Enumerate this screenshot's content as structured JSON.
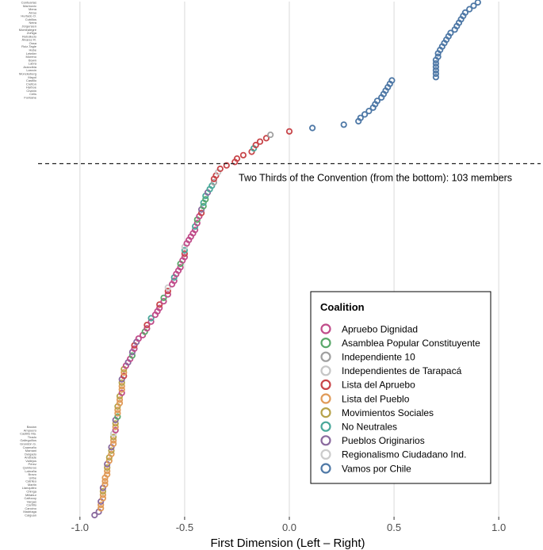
{
  "chart_data": {
    "type": "scatter",
    "xlabel": "First Dimension (Left – Right)",
    "ylabel": "",
    "xlim": [
      -1.2,
      1.2
    ],
    "x_ticks": [
      -1.0,
      -0.5,
      0.0,
      0.5,
      1.0
    ],
    "x_tick_labels": [
      "-1.0",
      "-0.5",
      "0.0",
      "0.5",
      "1.0"
    ],
    "grid": true,
    "legend": {
      "title": "Coalition",
      "position": "bottom-right"
    },
    "annotation": {
      "text": "Two Thirds of the Convention (from the bottom): 103 members",
      "rank_from_bottom": 103,
      "linestyle": "dashed"
    },
    "y_tick_labels_top": [
      "Cantuarias",
      "Marinovic",
      "Mena",
      "Arrau",
      "Hurtado O.",
      "Cubillos",
      "Neira",
      "Jürgensen",
      "Montealegre",
      "Zúñiga",
      "Rebolledo",
      "Álvarez R.",
      "Ossa",
      "Ruiz-Tagle",
      "Hube",
      "Letelier",
      "Moreno",
      "Bown",
      "Labra",
      "Arancibia",
      "Larraín",
      "Monckeberg",
      "Mayol",
      "Castillo",
      "Cretton",
      "Harboe",
      "Chahin",
      "Celis",
      "Fontaine"
    ],
    "y_tick_labels_bottom": [
      "Bacian",
      "Ampuero",
      "Castillo Ma.",
      "Tirado",
      "Galleguillos",
      "Grandón G.",
      "Caamaño",
      "Mamani",
      "Delgado",
      "Andrade",
      "Vallejos",
      "Pérez",
      "Quinteros",
      "Labraña",
      "Bravo",
      "Uribe",
      "Catrileo",
      "Martin",
      "Llanquileo",
      "Chinga",
      "Millabur",
      "Calfucoy",
      "Vargas",
      "Carrillo",
      "Cancino",
      "Madriaga",
      "Caiguan"
    ],
    "series": [
      {
        "name": "Apruebo Dignidad",
        "color": "#c04c8a",
        "values": [
          -0.83,
          -0.8,
          -0.78,
          -0.76,
          -0.74,
          -0.72,
          -0.7,
          -0.68,
          -0.66,
          -0.64,
          -0.63,
          -0.62,
          -0.6,
          -0.58,
          -0.56,
          -0.55,
          -0.54,
          -0.53,
          -0.52,
          -0.51,
          -0.5,
          -0.49,
          -0.48,
          -0.47,
          -0.46,
          -0.45,
          -0.44,
          -0.43
        ]
      },
      {
        "name": "Asamblea Popular Constituyente",
        "color": "#5aa86a",
        "values": [
          -0.82,
          -0.75,
          -0.69,
          -0.6,
          -0.52,
          -0.44,
          -0.41,
          -0.4
        ]
      },
      {
        "name": "Independiente 10",
        "color": "#a0a0a0",
        "values": [
          -0.36,
          -0.09
        ]
      },
      {
        "name": "Independientes de Tarapacá",
        "color": "#c6c6c6",
        "values": [
          -0.34
        ]
      },
      {
        "name": "Lista del Apruebo",
        "color": "#c8464a",
        "values": [
          -0.79,
          -0.74,
          -0.68,
          -0.62,
          -0.58,
          -0.5,
          -0.42,
          -0.36,
          -0.35,
          -0.33,
          -0.3,
          -0.26,
          -0.25,
          -0.22,
          -0.18,
          -0.16,
          -0.14,
          -0.11,
          0.0
        ]
      },
      {
        "name": "Lista del Pueblo",
        "color": "#e09a58",
        "values": [
          -0.9,
          -0.9,
          -0.89,
          -0.89,
          -0.88,
          -0.88,
          -0.88,
          -0.87,
          -0.87,
          -0.86,
          -0.85,
          -0.84,
          -0.84,
          -0.83,
          -0.82,
          -0.82,
          -0.81,
          -0.81,
          -0.8,
          -0.8,
          -0.79
        ]
      },
      {
        "name": "Movimientos Sociales",
        "color": "#b6a24a",
        "values": [
          -0.89,
          -0.87,
          -0.86,
          -0.85,
          -0.84,
          -0.83,
          -0.82,
          -0.81,
          -0.8,
          -0.79
        ]
      },
      {
        "name": "No Neutrales",
        "color": "#4aa89a",
        "values": [
          -0.66,
          -0.55,
          -0.5,
          -0.45,
          -0.41,
          -0.4,
          -0.38,
          -0.37,
          -0.17
        ]
      },
      {
        "name": "Pueblos Originarios",
        "color": "#8a6a9e",
        "values": [
          -0.93,
          -0.91,
          -0.9,
          -0.89,
          -0.87,
          -0.85,
          -0.83,
          -0.8,
          -0.77,
          -0.75,
          -0.73,
          -0.42,
          -0.39
        ]
      },
      {
        "name": "Regionalismo Ciudadano Ind.",
        "color": "#cccccc",
        "values": [
          -0.84,
          -0.58,
          -0.5
        ]
      },
      {
        "name": "Vamos por Chile",
        "color": "#4e78a6",
        "values": [
          0.11,
          0.26,
          0.33,
          0.34,
          0.36,
          0.38,
          0.4,
          0.41,
          0.42,
          0.44,
          0.45,
          0.46,
          0.47,
          0.48,
          0.49,
          0.7,
          0.7,
          0.7,
          0.7,
          0.7,
          0.7,
          0.71,
          0.71,
          0.72,
          0.73,
          0.74,
          0.75,
          0.76,
          0.77,
          0.79,
          0.8,
          0.81,
          0.82,
          0.83,
          0.84,
          0.86,
          0.88,
          0.9
        ]
      }
    ]
  }
}
